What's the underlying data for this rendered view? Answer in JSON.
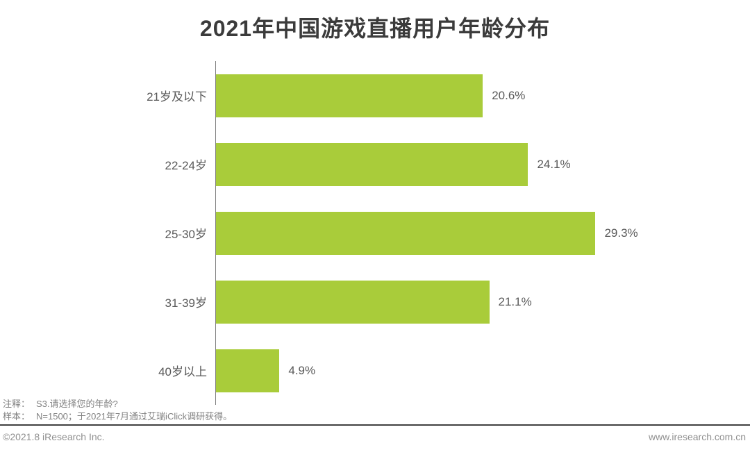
{
  "title": "2021年中国游戏直播用户年龄分布",
  "chart_data": {
    "type": "bar",
    "orientation": "horizontal",
    "title": "2021年中国游戏直播用户年龄分布",
    "categories": [
      "21岁及以下",
      "22-24岁",
      "25-30岁",
      "31-39岁",
      "40岁以上"
    ],
    "values": [
      20.6,
      24.1,
      29.3,
      21.1,
      4.9
    ],
    "value_labels": [
      "20.6%",
      "24.1%",
      "29.3%",
      "21.1%",
      "4.9%"
    ],
    "unit": "%",
    "xlim": [
      0,
      39
    ],
    "grid": false,
    "legend": false,
    "bar_color": "#a9cc3a",
    "axis_color": "#7f7f7f",
    "label_color": "#595959"
  },
  "notes": {
    "note_label": "注释：",
    "note_text": "S3.请选择您的年龄?",
    "sample_label": "样本：",
    "sample_text": "N=1500；于2021年7月通过艾瑞iClick调研获得。"
  },
  "footer": {
    "copyright": "©2021.8 iResearch Inc.",
    "website": "www.iresearch.com.cn"
  }
}
